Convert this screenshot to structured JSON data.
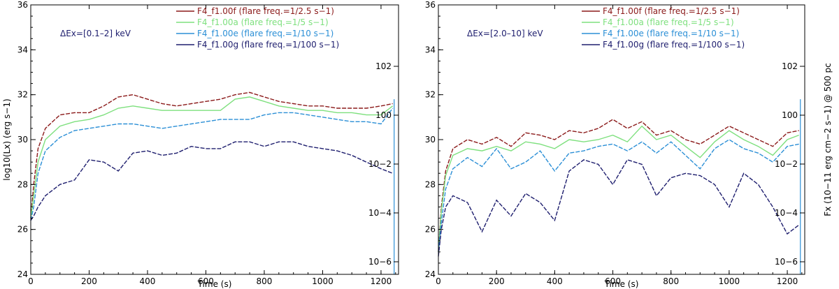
{
  "chart_data": [
    {
      "type": "line",
      "annotation": "ΔEx=[0.1–2] keV",
      "xlabel": "Time (s)",
      "ylabel": "log10(Lx) (erg s−1)",
      "y2label": "",
      "xlim": [
        0,
        1260
      ],
      "ylim": [
        24,
        36
      ],
      "xticks": [
        "0",
        "200",
        "400",
        "600",
        "800",
        "1000",
        "1200"
      ],
      "yticks": [
        "24",
        "26",
        "28",
        "30",
        "32",
        "34",
        "36"
      ],
      "y2ticks": [
        "10−6",
        "10−4",
        "10−2",
        "100",
        "102"
      ],
      "legend_position": "top-right",
      "x": [
        0,
        10,
        25,
        50,
        100,
        150,
        200,
        250,
        300,
        350,
        400,
        450,
        500,
        550,
        600,
        650,
        700,
        750,
        800,
        850,
        900,
        950,
        1000,
        1050,
        1100,
        1150,
        1200,
        1240
      ],
      "series": [
        {
          "name": "F4_f1.00f (flare freq.=1/2.5 s−1)",
          "color": "#8b1a1a",
          "values": [
            26.5,
            28.0,
            29.6,
            30.5,
            31.1,
            31.2,
            31.2,
            31.5,
            31.9,
            32.0,
            31.8,
            31.6,
            31.5,
            31.6,
            31.7,
            31.8,
            32.0,
            32.1,
            31.9,
            31.7,
            31.6,
            31.5,
            31.5,
            31.4,
            31.4,
            31.4,
            31.5,
            31.6
          ]
        },
        {
          "name": "F4_f1.00a (flare freq.=1/5 s−1)",
          "color": "#7ee07e",
          "values": [
            26.5,
            27.5,
            29.0,
            30.0,
            30.6,
            30.8,
            30.9,
            31.1,
            31.4,
            31.5,
            31.4,
            31.3,
            31.3,
            31.3,
            31.3,
            31.3,
            31.8,
            31.9,
            31.7,
            31.5,
            31.4,
            31.3,
            31.3,
            31.2,
            31.2,
            31.1,
            31.1,
            31.5
          ]
        },
        {
          "name": "F4_f1.00e (flare freq.=1/10 s−1)",
          "color": "#2b8fd6",
          "values": [
            26.4,
            27.0,
            28.5,
            29.5,
            30.1,
            30.4,
            30.5,
            30.6,
            30.7,
            30.7,
            30.6,
            30.5,
            30.6,
            30.7,
            30.8,
            30.9,
            30.9,
            30.9,
            31.1,
            31.2,
            31.2,
            31.1,
            31.0,
            30.9,
            30.8,
            30.8,
            30.7,
            31.4
          ]
        },
        {
          "name": "F4_f1.00g (flare freq.=1/100 s−1)",
          "color": "#1e1e6e",
          "values": [
            26.4,
            26.6,
            27.0,
            27.5,
            28.0,
            28.2,
            29.1,
            29.0,
            28.6,
            29.4,
            29.5,
            29.3,
            29.4,
            29.7,
            29.6,
            29.6,
            29.9,
            29.9,
            29.7,
            29.9,
            29.9,
            29.7,
            29.6,
            29.5,
            29.3,
            29.0,
            28.7,
            28.5
          ]
        }
      ]
    },
    {
      "type": "line",
      "annotation": "ΔEx=[2.0–10] keV",
      "xlabel": "Time (s)",
      "ylabel": "",
      "y2label": "Fx (10−11 erg cm−2 s−1) @ 500 pc",
      "xlim": [
        0,
        1260
      ],
      "ylim": [
        24,
        36
      ],
      "xticks": [
        "0",
        "200",
        "400",
        "600",
        "800",
        "1000",
        "1200"
      ],
      "yticks": [
        "24",
        "26",
        "28",
        "30",
        "32",
        "34",
        "36"
      ],
      "y2ticks": [
        "10−6",
        "10−4",
        "10−2",
        "100",
        "102"
      ],
      "legend_position": "top-right",
      "x": [
        0,
        10,
        25,
        50,
        100,
        150,
        200,
        250,
        300,
        350,
        400,
        450,
        500,
        550,
        600,
        650,
        700,
        750,
        800,
        850,
        900,
        950,
        1000,
        1050,
        1100,
        1150,
        1200,
        1240
      ],
      "series": [
        {
          "name": "F4_f1.00f (flare freq.=1/2.5 s−1)",
          "color": "#8b1a1a",
          "values": [
            25.0,
            27.0,
            28.6,
            29.6,
            30.0,
            29.8,
            30.1,
            29.7,
            30.3,
            30.2,
            30.0,
            30.4,
            30.3,
            30.5,
            30.9,
            30.5,
            30.8,
            30.2,
            30.4,
            30.0,
            29.8,
            30.2,
            30.6,
            30.3,
            30.0,
            29.7,
            30.3,
            30.4
          ]
        },
        {
          "name": "F4_f1.00a (flare freq.=1/5 s−1)",
          "color": "#7ee07e",
          "values": [
            25.0,
            26.8,
            28.4,
            29.3,
            29.6,
            29.5,
            29.7,
            29.5,
            29.9,
            29.8,
            29.6,
            30.0,
            29.9,
            30.0,
            30.2,
            29.9,
            30.6,
            30.0,
            30.2,
            29.7,
            29.2,
            29.9,
            30.4,
            30.0,
            29.7,
            29.3,
            30.0,
            30.2
          ]
        },
        {
          "name": "F4_f1.00e (flare freq.=1/10 s−1)",
          "color": "#2b8fd6",
          "values": [
            25.0,
            26.3,
            27.8,
            28.7,
            29.2,
            28.8,
            29.6,
            28.7,
            29.0,
            29.5,
            28.6,
            29.4,
            29.5,
            29.7,
            29.8,
            29.5,
            29.9,
            29.4,
            29.9,
            29.3,
            28.7,
            29.6,
            30.0,
            29.6,
            29.4,
            29.0,
            29.7,
            29.8
          ]
        },
        {
          "name": "F4_f1.00g (flare freq.=1/100 s−1)",
          "color": "#1e1e6e",
          "values": [
            24.8,
            26.0,
            27.0,
            27.5,
            27.2,
            25.9,
            27.3,
            26.6,
            27.6,
            27.2,
            26.4,
            28.6,
            29.1,
            28.9,
            28.0,
            29.1,
            28.9,
            27.5,
            28.3,
            28.5,
            28.4,
            28.0,
            27.0,
            28.5,
            28.0,
            27.0,
            25.8,
            26.2
          ]
        }
      ]
    }
  ]
}
